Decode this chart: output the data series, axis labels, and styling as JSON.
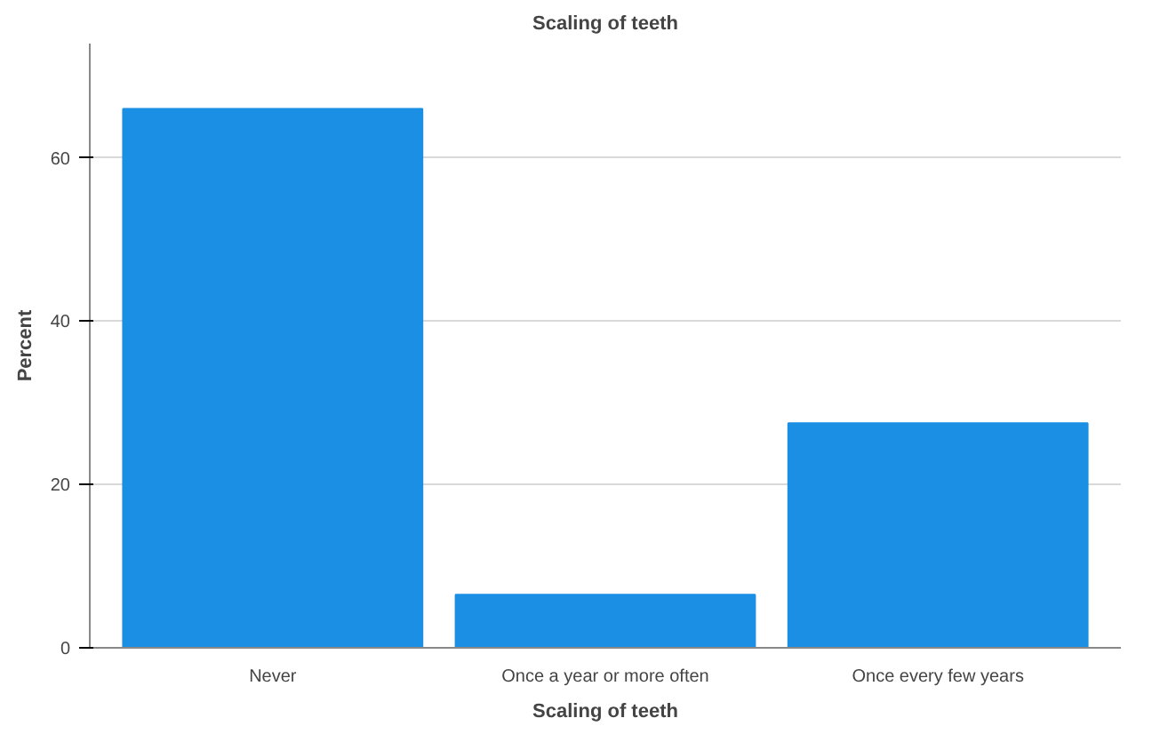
{
  "chart_data": {
    "type": "bar",
    "title": "Scaling of teeth",
    "xlabel": "Scaling of teeth",
    "ylabel": "Percent",
    "categories": [
      "Never",
      "Once a year or more often",
      "Once every few years"
    ],
    "values": [
      66,
      6.5,
      27.5
    ],
    "color": "#1a8fe3",
    "ylim": [
      0,
      74
    ],
    "yticks": [
      0,
      20,
      40,
      60
    ],
    "grid": "y"
  }
}
